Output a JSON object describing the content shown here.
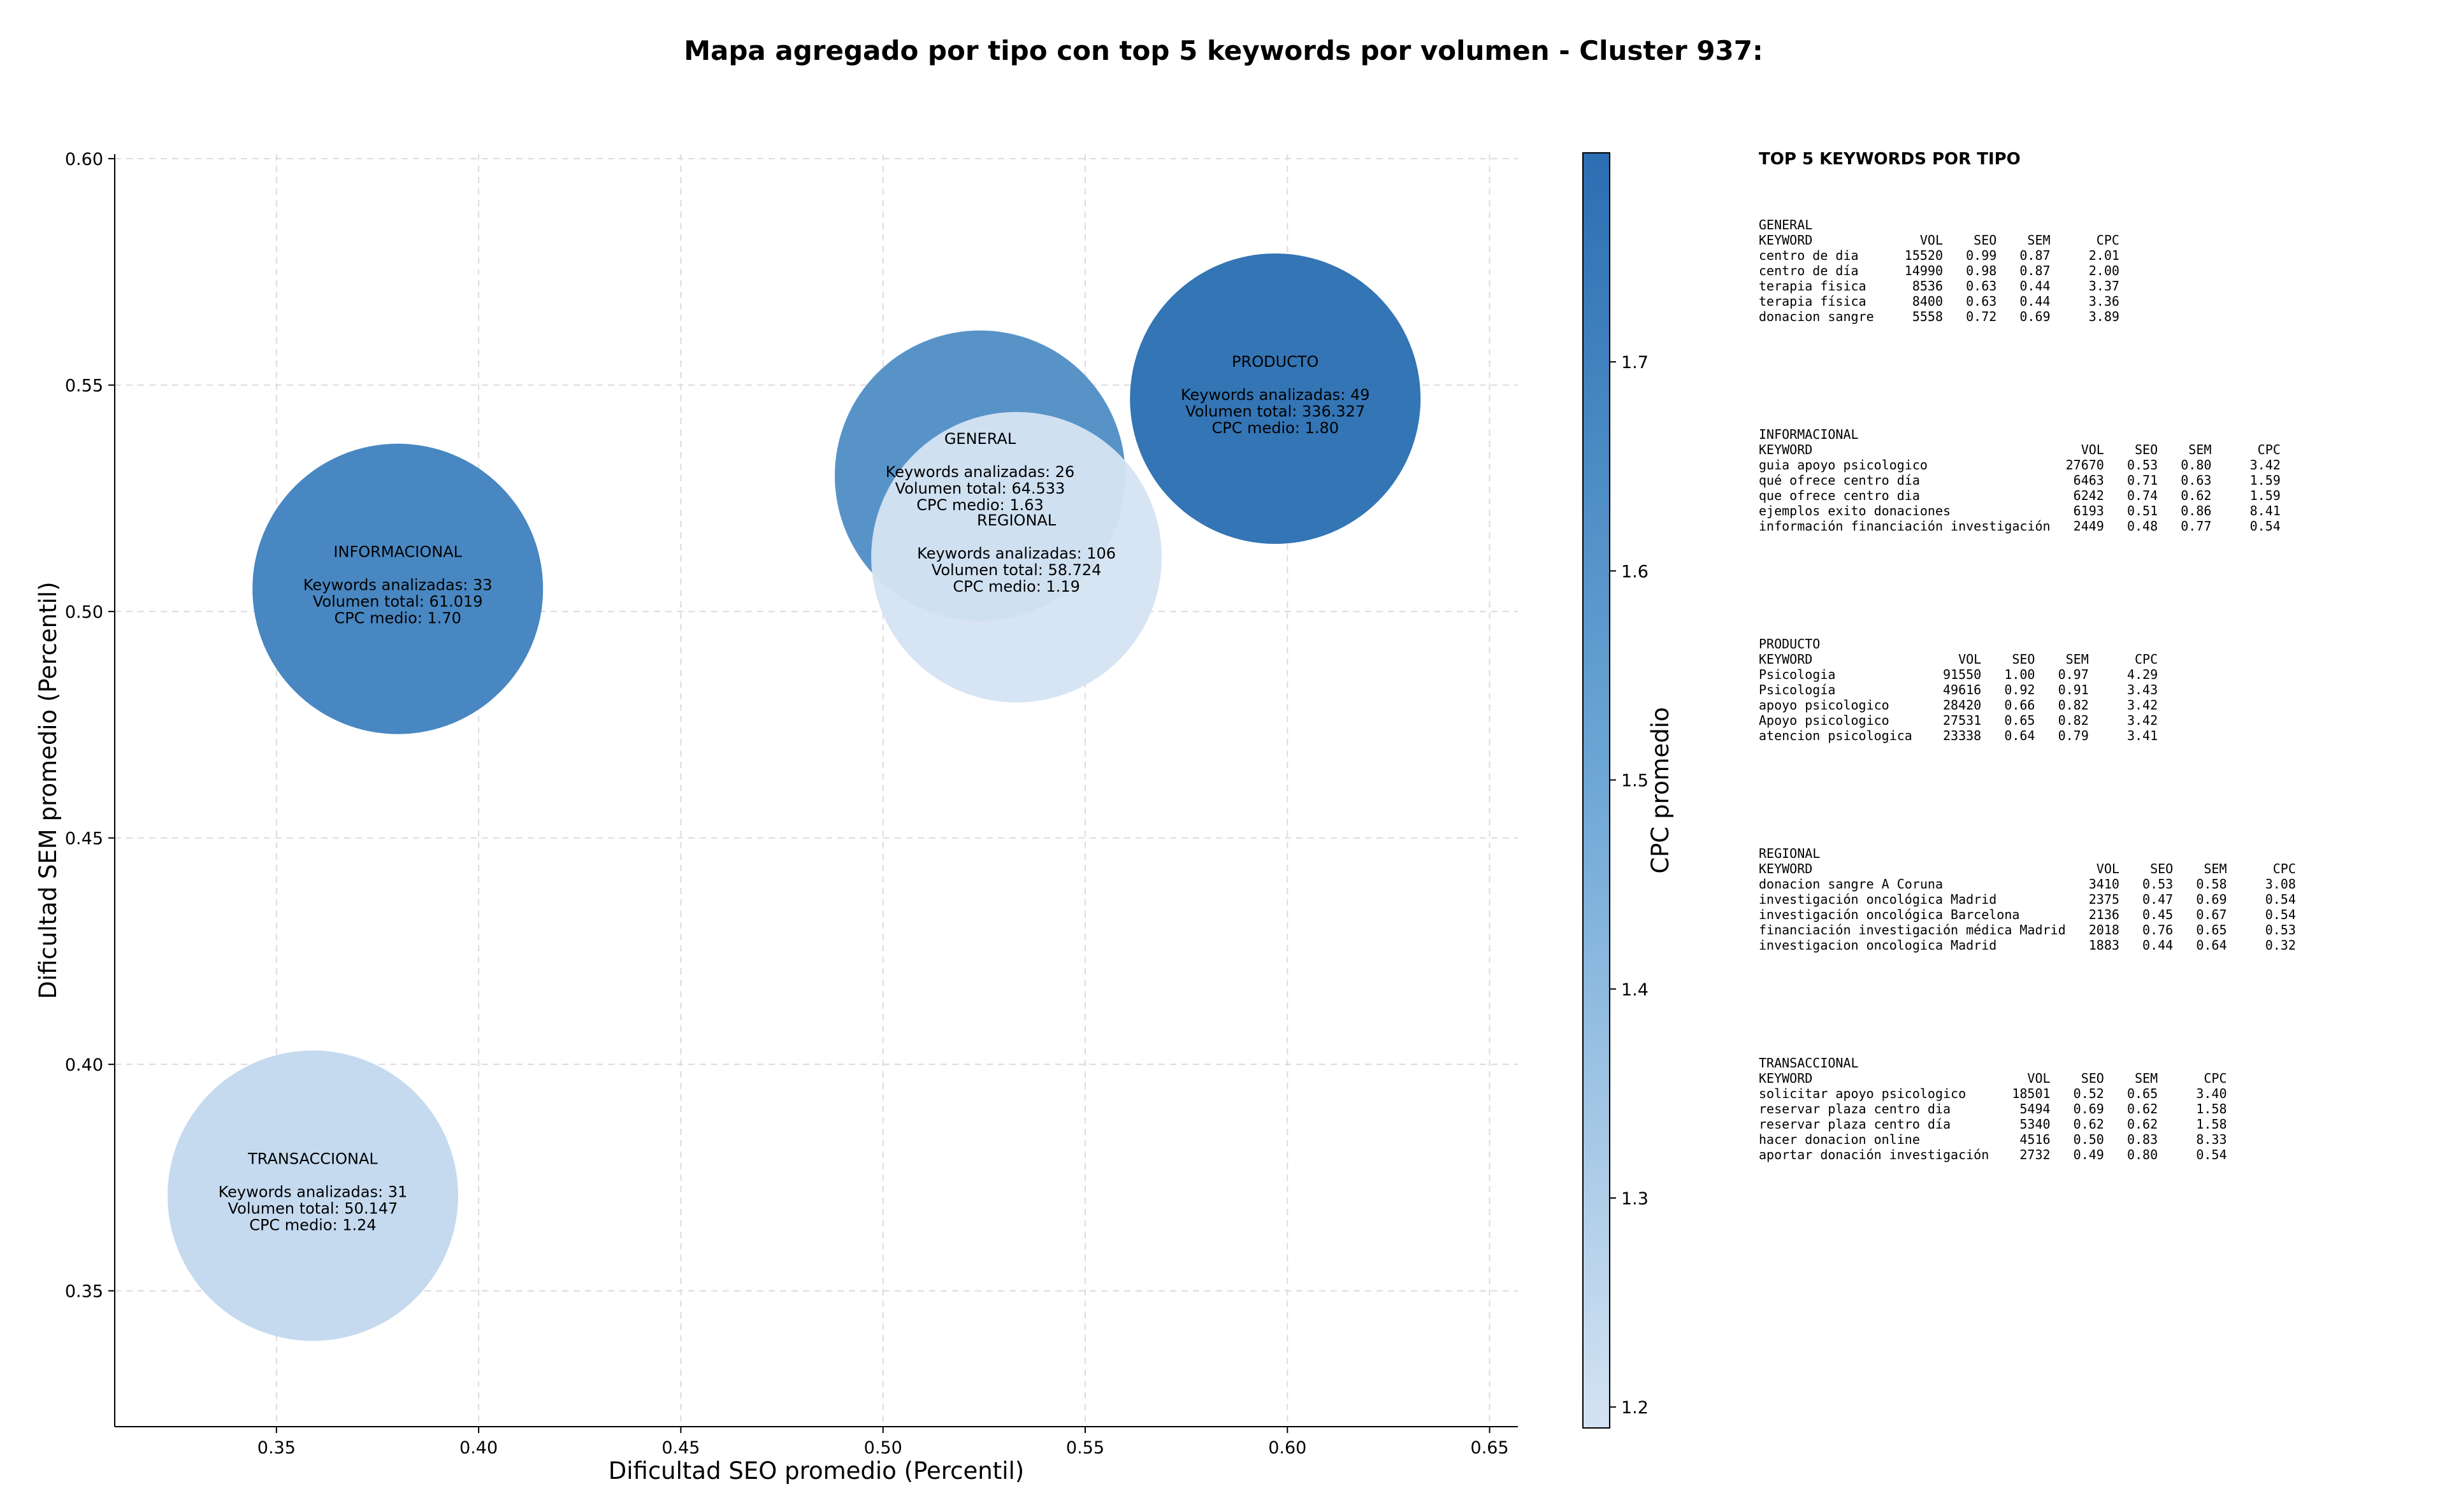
{
  "title": "Mapa agregado por tipo con top 5 keywords por volumen - Cluster 937:",
  "chart_data": {
    "type": "scatter",
    "xlabel": "Dificultad SEO promedio (Percentil)",
    "ylabel": "Dificultad SEM promedio (Percentil)",
    "xlim": [
      0.31,
      0.657
    ],
    "ylim": [
      0.32,
      0.601
    ],
    "xticks": [
      "0.35",
      "0.40",
      "0.45",
      "0.50",
      "0.55",
      "0.60",
      "0.65"
    ],
    "yticks": [
      "0.35",
      "0.40",
      "0.45",
      "0.50",
      "0.55",
      "0.60"
    ],
    "grid": true,
    "colorbar": {
      "label": "CPC promedio",
      "min": 1.19,
      "max": 1.8,
      "ticks": [
        "1.2",
        "1.3",
        "1.4",
        "1.5",
        "1.6",
        "1.7"
      ],
      "color_low": "#d4e3f3",
      "color_high": "#2b6fb2"
    },
    "bubble_line_keywords": "Keywords analizadas:",
    "bubble_line_volume": "Volumen total:",
    "bubble_line_cpc": "CPC medio:",
    "points": [
      {
        "name": "GENERAL",
        "x": 0.524,
        "y": 0.53,
        "keywords": "26",
        "volume": "64.533",
        "cpc": "1.63",
        "cpc_value": 1.63,
        "volume_value": 64533
      },
      {
        "name": "INFORMACIONAL",
        "x": 0.38,
        "y": 0.505,
        "keywords": "33",
        "volume": "61.019",
        "cpc": "1.70",
        "cpc_value": 1.7,
        "volume_value": 61019
      },
      {
        "name": "PRODUCTO",
        "x": 0.597,
        "y": 0.547,
        "keywords": "49",
        "volume": "336.327",
        "cpc": "1.80",
        "cpc_value": 1.8,
        "volume_value": 336327
      },
      {
        "name": "REGIONAL",
        "x": 0.533,
        "y": 0.512,
        "keywords": "106",
        "volume": "58.724",
        "cpc": "1.19",
        "cpc_value": 1.19,
        "volume_value": 58724
      },
      {
        "name": "TRANSACCIONAL",
        "x": 0.359,
        "y": 0.371,
        "keywords": "31",
        "volume": "50.147",
        "cpc": "1.24",
        "cpc_value": 1.24,
        "volume_value": 50147
      }
    ]
  },
  "legend": {
    "title": "TOP 5 KEYWORDS POR TIPO",
    "blocks": [
      {
        "name": "GENERAL",
        "header": "KEYWORD              VOL    SEO    SEM      CPC",
        "rows": [
          "centro de dia      15520   0.99   0.87     2.01",
          "centro de día      14990   0.98   0.87     2.00",
          "terapia fisica      8536   0.63   0.44     3.37",
          "terapia física      8400   0.63   0.44     3.36",
          "donacion sangre     5558   0.72   0.69     3.89"
        ]
      },
      {
        "name": "INFORMACIONAL",
        "header": "KEYWORD                                   VOL    SEO    SEM      CPC",
        "rows": [
          "guia apoyo psicologico                  27670   0.53   0.80     3.42",
          "qué ofrece centro día                    6463   0.71   0.63     1.59",
          "que ofrece centro dia                    6242   0.74   0.62     1.59",
          "ejemplos exito donaciones                6193   0.51   0.86     8.41",
          "información financiación investigación   2449   0.48   0.77     0.54"
        ]
      },
      {
        "name": "PRODUCTO",
        "header": "KEYWORD                   VOL    SEO    SEM      CPC",
        "rows": [
          "Psicologia              91550   1.00   0.97     4.29",
          "Psicología              49616   0.92   0.91     3.43",
          "apoyo psicologico       28420   0.66   0.82     3.42",
          "Apoyo psicologico       27531   0.65   0.82     3.42",
          "atencion psicologica    23338   0.64   0.79     3.41"
        ]
      },
      {
        "name": "REGIONAL",
        "header": "KEYWORD                                     VOL    SEO    SEM      CPC",
        "rows": [
          "donacion sangre A Coruna                   3410   0.53   0.58     3.08",
          "investigación oncológica Madrid            2375   0.47   0.69     0.54",
          "investigación oncológica Barcelona         2136   0.45   0.67     0.54",
          "financiación investigación médica Madrid   2018   0.76   0.65     0.53",
          "investigacion oncologica Madrid            1883   0.44   0.64     0.32"
        ]
      },
      {
        "name": "TRANSACCIONAL",
        "header": "KEYWORD                            VOL    SEO    SEM      CPC",
        "rows": [
          "solicitar apoyo psicologico      18501   0.52   0.65     3.40",
          "reservar plaza centro dia         5494   0.69   0.62     1.58",
          "reservar plaza centro día         5340   0.62   0.62     1.58",
          "hacer donacion online             4516   0.50   0.83     8.33",
          "aportar donación investigación    2732   0.49   0.80     0.54"
        ]
      }
    ]
  }
}
